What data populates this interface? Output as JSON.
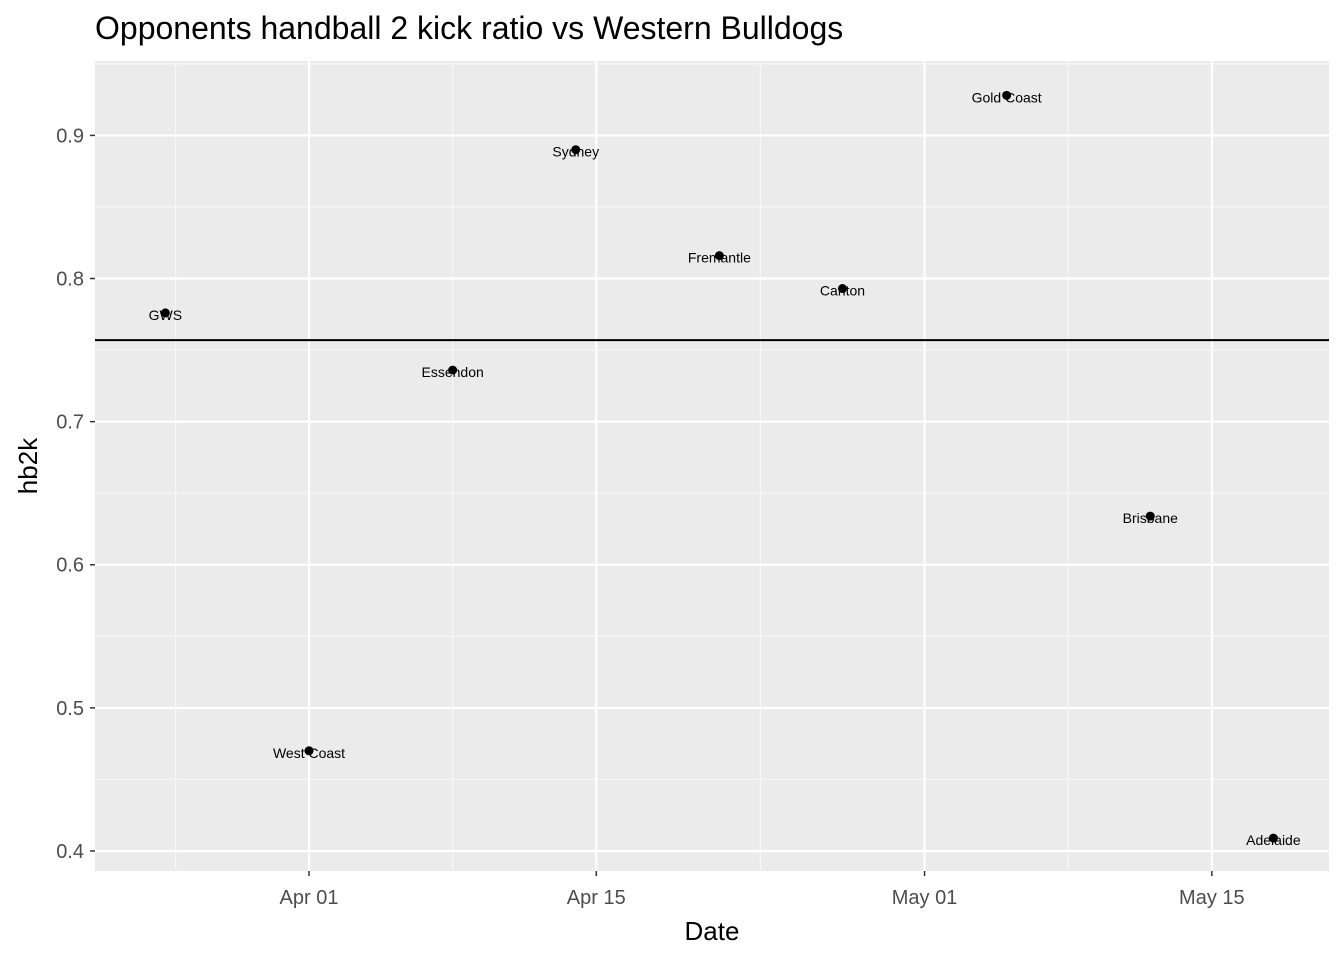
{
  "chart_data": {
    "type": "scatter",
    "title": "Opponents handball 2 kick ratio vs Western Bulldogs",
    "xlabel": "Date",
    "ylabel": "hb2k",
    "x_tick_labels": [
      {
        "date": "2017-04-01",
        "label": "Apr 01"
      },
      {
        "date": "2017-04-15",
        "label": "Apr 15"
      },
      {
        "date": "2017-05-01",
        "label": "May 01"
      },
      {
        "date": "2017-05-15",
        "label": "May 15"
      }
    ],
    "y_ticks": [
      0.4,
      0.5,
      0.6,
      0.7,
      0.8,
      0.9
    ],
    "y_tick_labels": [
      "0.4",
      "0.5",
      "0.6",
      "0.7",
      "0.8",
      "0.9"
    ],
    "xlim": [
      "2017-03-22",
      "2017-05-20"
    ],
    "ylim": [
      0.386,
      0.952
    ],
    "hline": 0.757,
    "grid": true,
    "points": [
      {
        "date": "2017-03-25",
        "y": 0.776,
        "label": "GWS"
      },
      {
        "date": "2017-04-01",
        "y": 0.47,
        "label": "West Coast"
      },
      {
        "date": "2017-04-08",
        "y": 0.736,
        "label": "Essendon"
      },
      {
        "date": "2017-04-14",
        "y": 0.89,
        "label": "Sydney"
      },
      {
        "date": "2017-04-21",
        "y": 0.816,
        "label": "Fremantle"
      },
      {
        "date": "2017-04-27",
        "y": 0.793,
        "label": "Carlton"
      },
      {
        "date": "2017-05-05",
        "y": 0.928,
        "label": "Gold Coast"
      },
      {
        "date": "2017-05-12",
        "y": 0.634,
        "label": "Brisbane"
      },
      {
        "date": "2017-05-18",
        "y": 0.409,
        "label": "Adelaide"
      }
    ]
  }
}
